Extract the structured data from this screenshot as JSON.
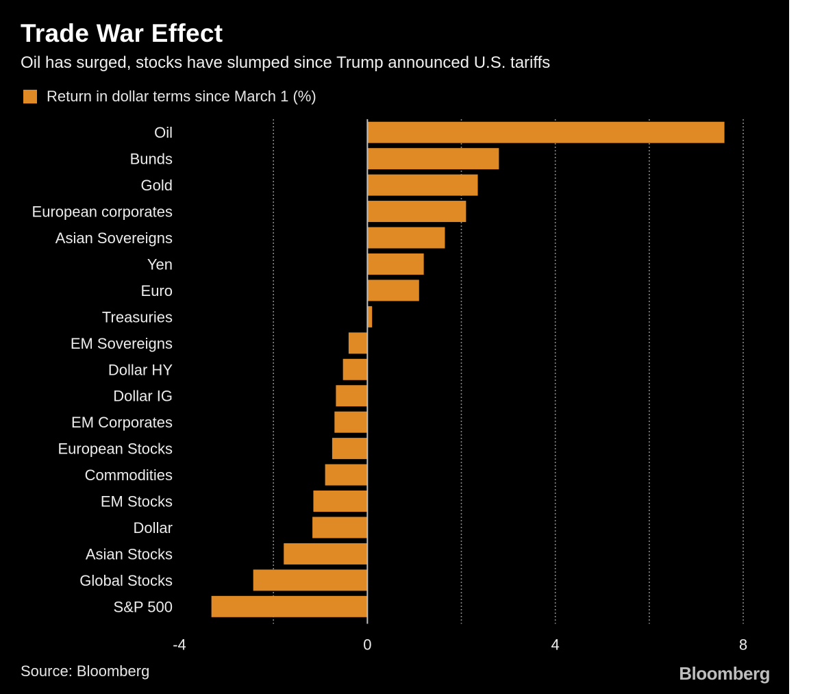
{
  "title": "Trade War Effect",
  "subtitle": "Oil has surged, stocks have slumped since Trump announced U.S. tariffs",
  "source": "Source: Bloomberg",
  "brand": "Bloomberg",
  "colors": {
    "background": "#000000",
    "bar": "#e08a26",
    "text": "#ffffff",
    "grid": "#8a8a8a"
  },
  "chart_data": {
    "type": "bar",
    "orientation": "horizontal",
    "legend": "Return in dollar terms since March 1 (%)",
    "legend_position": "top-left",
    "categories": [
      "Oil",
      "Bunds",
      "Gold",
      "European corporates",
      "Asian Sovereigns",
      "Yen",
      "Euro",
      "Treasuries",
      "EM Sovereigns",
      "Dollar HY",
      "Dollar IG",
      "EM Corporates",
      "European Stocks",
      "Commodities",
      "EM Stocks",
      "Dollar",
      "Asian Stocks",
      "Global Stocks",
      "S&P 500"
    ],
    "series": [
      {
        "name": "Return in dollar terms since March 1 (%)",
        "values": [
          7.6,
          2.8,
          2.35,
          2.1,
          1.65,
          1.2,
          1.1,
          0.1,
          -0.4,
          -0.52,
          -0.67,
          -0.7,
          -0.75,
          -0.9,
          -1.15,
          -1.17,
          -1.78,
          -2.43,
          -3.32
        ]
      }
    ],
    "xlim": [
      -4,
      8
    ],
    "xticks": [
      -4,
      0,
      4,
      8
    ],
    "gridlines": [
      -2,
      2,
      4,
      6,
      8
    ],
    "grid": "dotted vertical",
    "xlabel": "",
    "ylabel": ""
  }
}
